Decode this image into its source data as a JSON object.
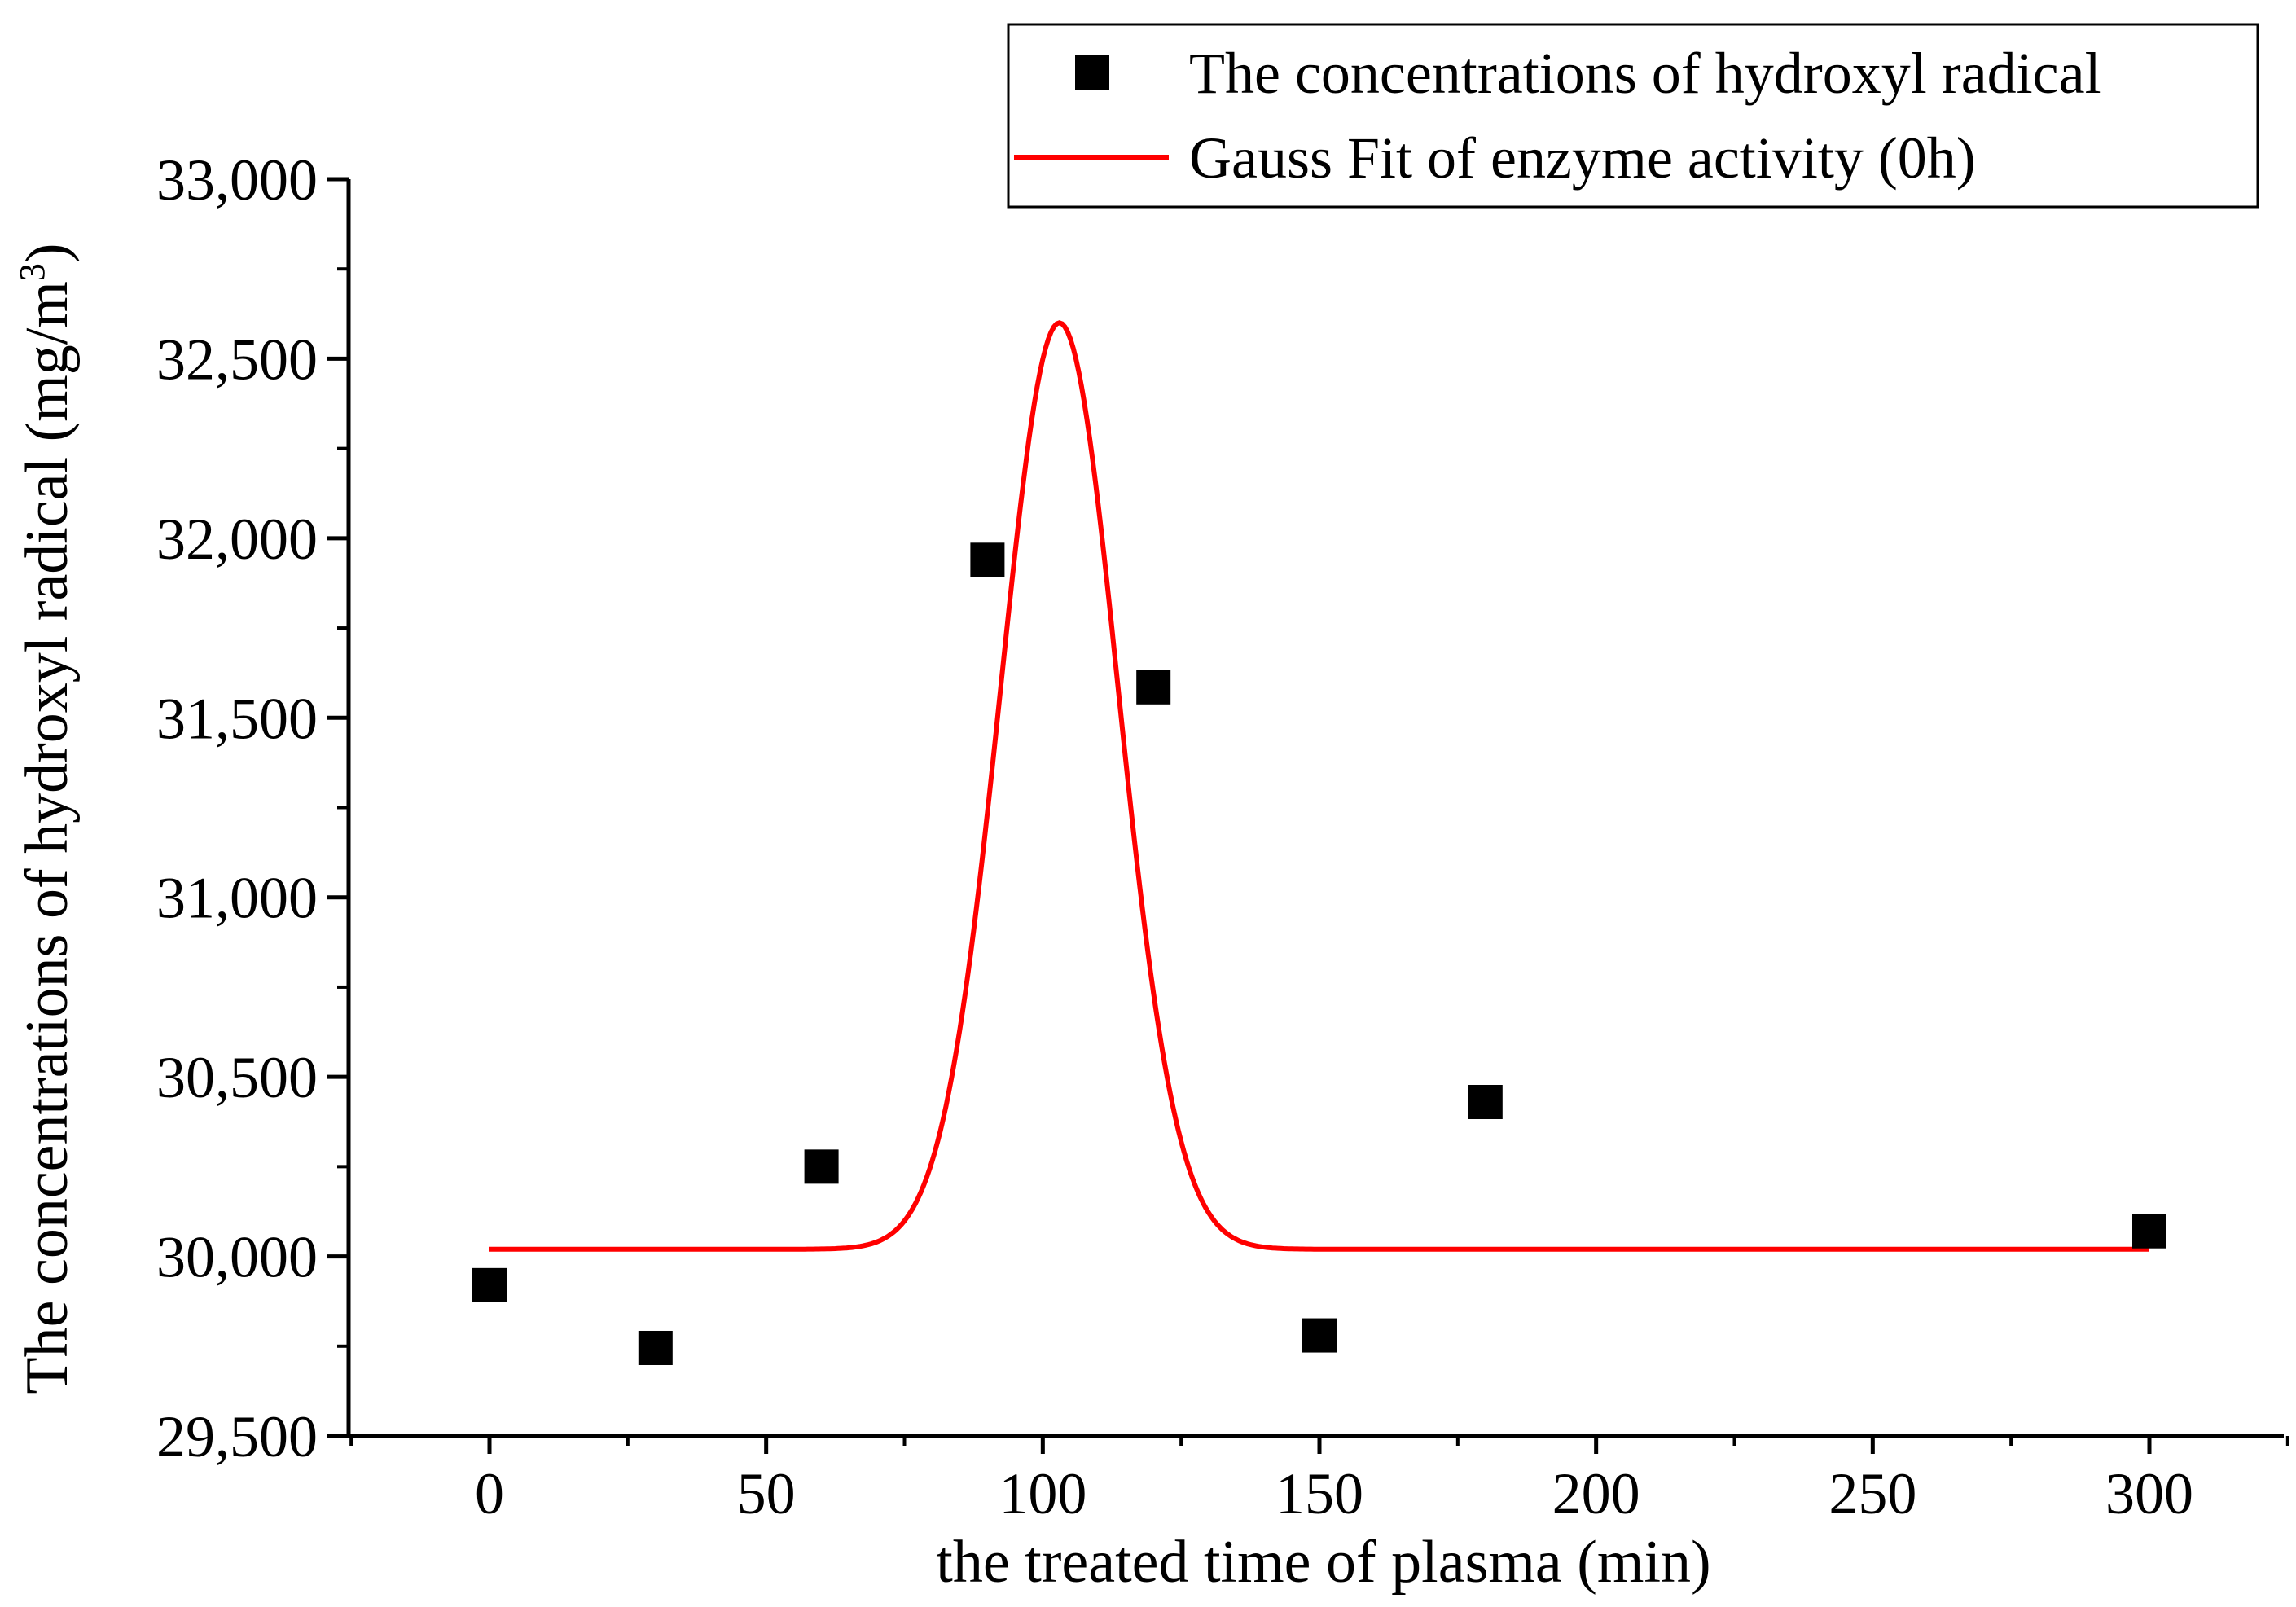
{
  "chart_data": {
    "type": "scatter",
    "title": "",
    "xlabel": "the treated time of plasma (min)",
    "ylabel": {
      "main": "The concentrations of hydroxyl radical (mg/m",
      "superscript": "3",
      "suffix": ")"
    },
    "xlim": [
      -25,
      325
    ],
    "ylim": [
      29500,
      33000
    ],
    "x_ticks": [
      0,
      50,
      100,
      150,
      200,
      250,
      300
    ],
    "x_tick_labels": [
      "0",
      "50",
      "100",
      "150",
      "200",
      "250",
      "300"
    ],
    "y_ticks": [
      29500,
      30000,
      30500,
      31000,
      31500,
      32000,
      32500,
      33000
    ],
    "y_tick_labels": [
      "29,500",
      "30,000",
      "30,500",
      "31,000",
      "31,500",
      "32,000",
      "32,500",
      "33,000"
    ],
    "grid": false,
    "legend_position": "top-right",
    "series": [
      {
        "name": "The concentrations of hydroxyl radical",
        "kind": "scatter",
        "marker": "square",
        "color": "#000000",
        "x": [
          0,
          30,
          60,
          90,
          120,
          150,
          180,
          300
        ],
        "y": [
          29920,
          29745,
          30250,
          31940,
          31585,
          29780,
          30430,
          30070
        ]
      },
      {
        "name": "Gauss Fit of enzyme activity (0h)",
        "kind": "line",
        "color": "#ff0000",
        "model": "gauss",
        "params": {
          "y0": 30020,
          "A": 2580,
          "xc": 103,
          "w": 15
        },
        "x_range": [
          0,
          300
        ]
      }
    ]
  }
}
